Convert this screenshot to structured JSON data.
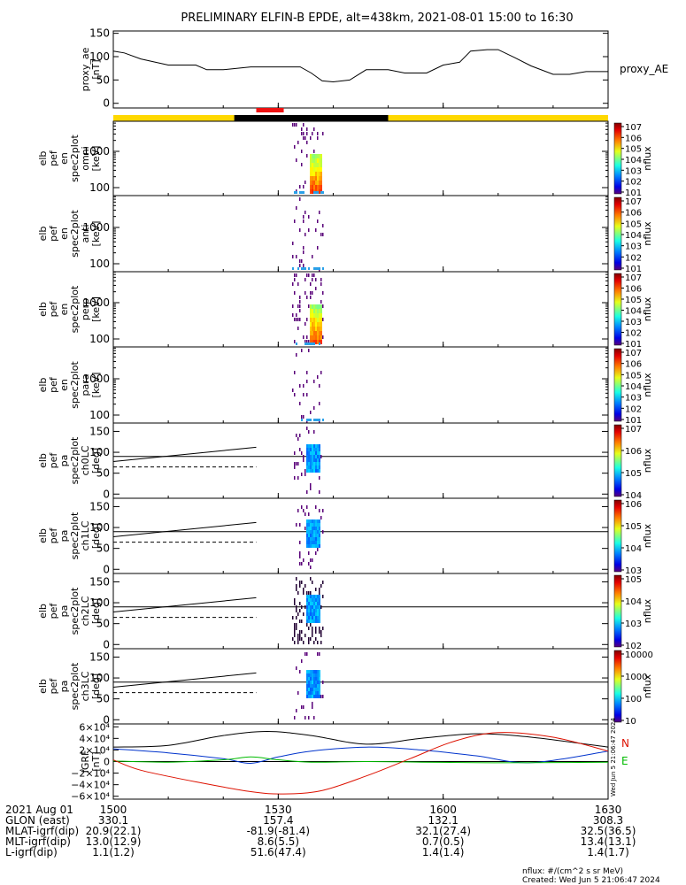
{
  "title": "PRELIMINARY ELFIN-B EPDE, alt=438km, 2021-08-01 15:00 to 16:30",
  "colors": {
    "day": "#ffd800",
    "night": "#000000",
    "science": "#ee1111",
    "bx": "#0033cc",
    "by": "#00bb00",
    "bz": "#dd1100",
    "btot": "#000000"
  },
  "chart_data": [
    {
      "type": "line",
      "panel": "proxy_ae",
      "ylabel_lines": [
        "proxy_ae",
        "[nT]"
      ],
      "series_label": "proxy_AE",
      "ylim": [
        -10,
        155
      ],
      "yticks": [
        0,
        50,
        100,
        150
      ],
      "x": [
        "15:00",
        "15:02",
        "15:05",
        "15:10",
        "15:15",
        "15:17",
        "15:20",
        "15:25",
        "15:30",
        "15:34",
        "15:36",
        "15:38",
        "15:40",
        "15:43",
        "15:46",
        "15:50",
        "15:53",
        "15:57",
        "16:00",
        "16:03",
        "16:05",
        "16:08",
        "16:10",
        "16:13",
        "16:16",
        "16:20",
        "16:23",
        "16:26",
        "16:30"
      ],
      "values": [
        112,
        108,
        95,
        82,
        82,
        72,
        72,
        78,
        78,
        78,
        65,
        48,
        46,
        50,
        72,
        72,
        65,
        65,
        82,
        88,
        112,
        115,
        115,
        98,
        80,
        62,
        62,
        68,
        68
      ]
    },
    {
      "type": "heatmap",
      "panel": "orbit_bar",
      "segments": [
        {
          "label": "day",
          "start": "15:00",
          "end": "15:22"
        },
        {
          "label": "night",
          "start": "15:22",
          "end": "15:50"
        },
        {
          "label": "day",
          "start": "15:50",
          "end": "16:30"
        }
      ],
      "science_zone": {
        "start": "15:26",
        "end": "15:31"
      }
    },
    {
      "type": "heatmap",
      "panel": "en_omni",
      "ylabel_lines": [
        "elb",
        "pef",
        "en",
        "spec2plot",
        "omni",
        "[keV]"
      ],
      "yscale": "log",
      "yticks": [
        "100",
        "1000"
      ],
      "colorbar": {
        "label": "nflux",
        "scale": "log",
        "ticks": [
          "101",
          "102",
          "103",
          "104",
          "105",
          "106",
          "107"
        ]
      },
      "time_range": [
        "15:26",
        "15:31"
      ]
    },
    {
      "type": "heatmap",
      "panel": "en_anti",
      "ylabel_lines": [
        "elb",
        "pef",
        "en",
        "spec2plot",
        "anti",
        "[keV]"
      ],
      "yscale": "log",
      "yticks": [
        "100",
        "1000"
      ],
      "colorbar": {
        "label": "nflux",
        "scale": "log",
        "ticks": [
          "101",
          "102",
          "103",
          "104",
          "105",
          "106",
          "107"
        ]
      },
      "time_range": [
        "15:26",
        "15:31"
      ]
    },
    {
      "type": "heatmap",
      "panel": "en_perp",
      "ylabel_lines": [
        "elb",
        "pef",
        "en",
        "spec2plot",
        "perp",
        "[keV]"
      ],
      "yscale": "log",
      "yticks": [
        "100",
        "1000"
      ],
      "colorbar": {
        "label": "nflux",
        "scale": "log",
        "ticks": [
          "101",
          "102",
          "103",
          "104",
          "105",
          "106",
          "107"
        ]
      },
      "time_range": [
        "15:26",
        "15:31"
      ]
    },
    {
      "type": "heatmap",
      "panel": "en_para",
      "ylabel_lines": [
        "elb",
        "pef",
        "en",
        "spec2plot",
        "para",
        "[keV]"
      ],
      "yscale": "log",
      "yticks": [
        "100",
        "1000"
      ],
      "colorbar": {
        "label": "nflux",
        "scale": "log",
        "ticks": [
          "101",
          "102",
          "103",
          "104",
          "105",
          "106",
          "107"
        ]
      },
      "time_range": [
        "15:26",
        "15:31"
      ]
    },
    {
      "type": "heatmap",
      "panel": "pa_ch0",
      "ylabel_lines": [
        "elb",
        "pef",
        "pa",
        "spec2plot",
        "ch0LC",
        "[deg]"
      ],
      "ylim": [
        -10,
        170
      ],
      "yticks": [
        0,
        50,
        100,
        150
      ],
      "colorbar": {
        "label": "nflux",
        "scale": "log",
        "ticks": [
          "104",
          "105",
          "106",
          "107"
        ]
      },
      "time_range": [
        "15:26",
        "15:31"
      ]
    },
    {
      "type": "heatmap",
      "panel": "pa_ch1",
      "ylabel_lines": [
        "elb",
        "pef",
        "pa",
        "spec2plot",
        "ch1LC",
        "[deg]"
      ],
      "ylim": [
        -10,
        170
      ],
      "yticks": [
        0,
        50,
        100,
        150
      ],
      "colorbar": {
        "label": "nflux",
        "scale": "log",
        "ticks": [
          "103",
          "104",
          "105",
          "106"
        ]
      },
      "time_range": [
        "15:26",
        "15:31"
      ]
    },
    {
      "type": "heatmap",
      "panel": "pa_ch2",
      "ylabel_lines": [
        "elb",
        "pef",
        "pa",
        "spec2plot",
        "ch2LC",
        "[deg]"
      ],
      "ylim": [
        -10,
        170
      ],
      "yticks": [
        0,
        50,
        100,
        150
      ],
      "colorbar": {
        "label": "nflux",
        "scale": "log",
        "ticks": [
          "102",
          "103",
          "104",
          "105"
        ]
      },
      "time_range": [
        "15:26",
        "15:31"
      ]
    },
    {
      "type": "heatmap",
      "panel": "pa_ch3",
      "ylabel_lines": [
        "elb",
        "pef",
        "pa",
        "spec2plot",
        "ch3LC",
        "[deg]"
      ],
      "ylim": [
        -10,
        170
      ],
      "yticks": [
        0,
        50,
        100,
        150
      ],
      "colorbar": {
        "label": "nflux",
        "scale": "log",
        "ticks": [
          "10",
          "100",
          "1000",
          "10000"
        ]
      },
      "time_range": [
        "15:26",
        "15:31"
      ]
    },
    {
      "type": "line",
      "panel": "igrf",
      "ylabel_lines": [
        "IGRF",
        "[nT]"
      ],
      "ylim": [
        -65000,
        65000
      ],
      "ytick_labels": [
        "6×10⁴",
        "4×10⁴",
        "2×10⁴",
        "0",
        "−2×10⁴",
        "−4×10⁴",
        "−6×10⁴"
      ],
      "legend": [
        "N",
        "E"
      ],
      "series": [
        {
          "key": "btot",
          "x": [
            "15:00",
            "15:10",
            "15:20",
            "15:28",
            "15:36",
            "15:46",
            "15:56",
            "16:06",
            "16:16",
            "16:30"
          ],
          "values": [
            25000,
            28000,
            45000,
            52000,
            45000,
            30000,
            40000,
            48000,
            42000,
            25000
          ]
        },
        {
          "key": "bx",
          "x": [
            "15:00",
            "15:10",
            "15:20",
            "15:25",
            "15:30",
            "15:36",
            "15:46",
            "15:56",
            "16:06",
            "16:16",
            "16:30"
          ],
          "values": [
            22000,
            15000,
            5000,
            -3000,
            8000,
            18000,
            25000,
            20000,
            10000,
            -2000,
            18000
          ]
        },
        {
          "key": "by",
          "x": [
            "15:00",
            "15:10",
            "15:20",
            "15:25",
            "15:30",
            "15:36",
            "15:46",
            "15:56",
            "16:06",
            "16:16",
            "16:30"
          ],
          "values": [
            1000,
            -1000,
            3000,
            8000,
            3000,
            -1000,
            0,
            -1000,
            -2000,
            -2000,
            -1000
          ]
        },
        {
          "key": "bz",
          "x": [
            "15:00",
            "15:05",
            "15:15",
            "15:25",
            "15:31",
            "15:38",
            "15:46",
            "15:54",
            "16:02",
            "16:10",
            "16:20",
            "16:30"
          ],
          "values": [
            3000,
            -15000,
            -35000,
            -52000,
            -56000,
            -50000,
            -25000,
            5000,
            35000,
            50000,
            42000,
            18000
          ]
        }
      ]
    }
  ],
  "side_stamp": "Wed Jun  5 21:06:47 2024",
  "footer": {
    "rows": [
      {
        "label": "2021 Aug 01",
        "values": [
          "1500",
          "1530",
          "1600",
          "1630"
        ]
      },
      {
        "label": "GLON (east)",
        "values": [
          "330.1",
          "157.4",
          "132.1",
          "308.3"
        ]
      },
      {
        "label": "MLAT-igrf(dip)",
        "values": [
          "20.9(22.1)",
          "-81.9(-81.4)",
          "32.1(27.4)",
          "32.5(36.5)"
        ]
      },
      {
        "label": "MLT-igrf(dip)",
        "values": [
          "13.0(12.9)",
          "8.6(5.5)",
          "0.7(0.5)",
          "13.4(13.1)"
        ]
      },
      {
        "label": "L-igrf(dip)",
        "values": [
          "1.1(1.2)",
          "51.6(47.4)",
          "1.4(1.4)",
          "1.4(1.7)"
        ]
      }
    ],
    "units_note": "nflux: #/(cm^2 s sr MeV)",
    "created": "Created: Wed Jun  5 21:06:47 2024"
  }
}
